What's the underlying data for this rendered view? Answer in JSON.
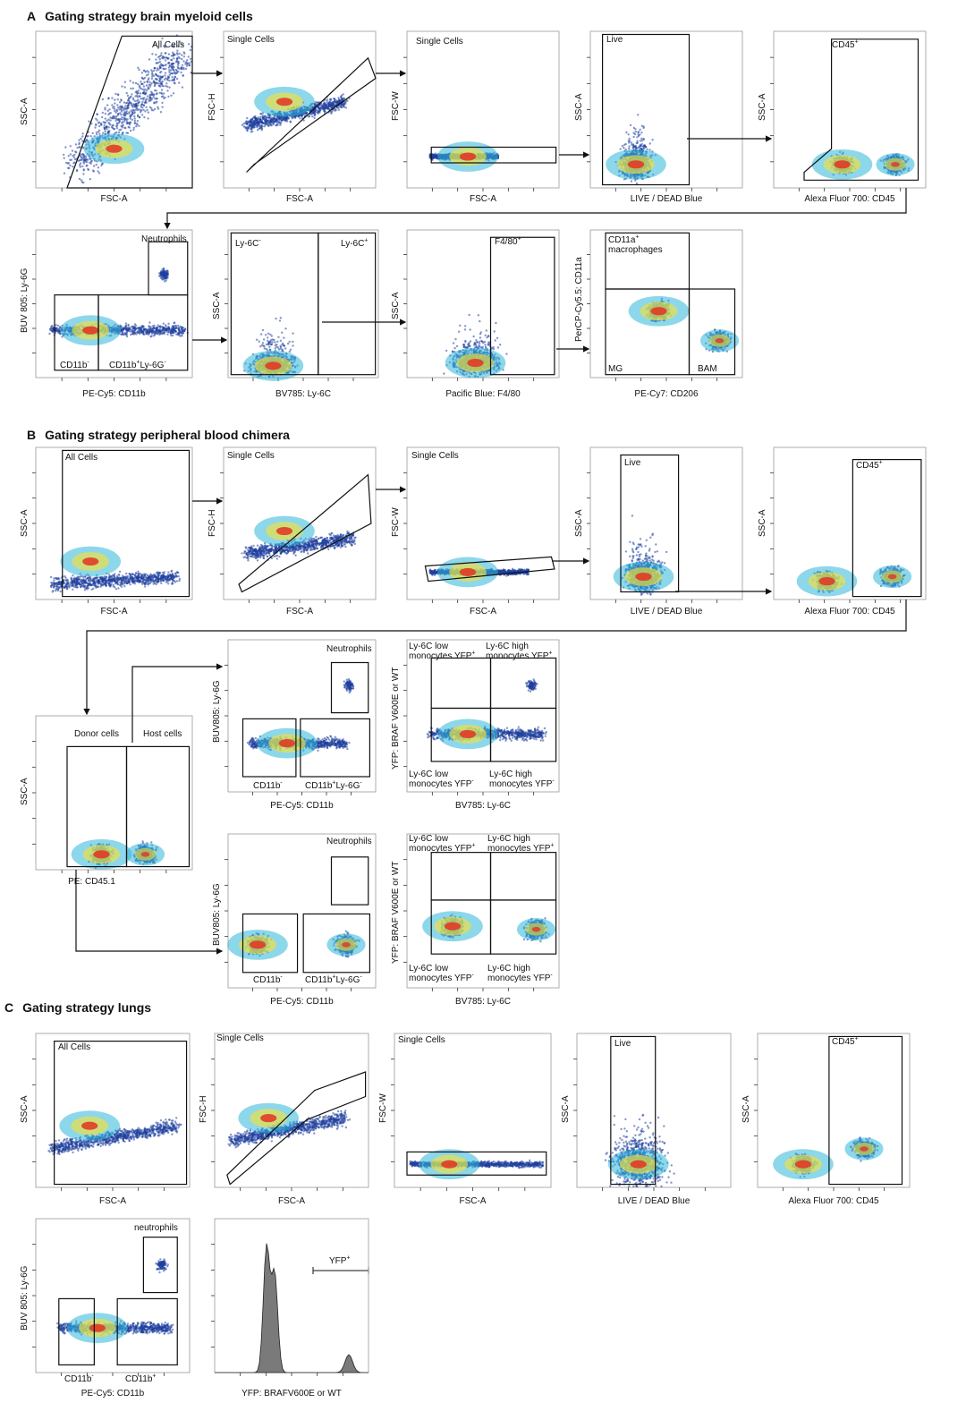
{
  "sections": {
    "a": {
      "letter": "A",
      "title": "Gating strategy brain myeloid cells"
    },
    "b": {
      "letter": "B",
      "title": "Gating strategy peripheral blood chimera"
    },
    "c": {
      "letter": "C",
      "title": "Gating strategy lungs"
    }
  },
  "axes": {
    "fsc_a": "FSC-A",
    "fsc_h": "FSC-H",
    "fsc_w": "FSC-W",
    "ssc_a": "SSC-A",
    "live_dead": "LIVE / DEAD Blue",
    "cd45": "Alexa Fluor 700: CD45",
    "buv805_ly6g": "BUV 805: Ly-6G",
    "buv805_ly6g_b": "BUV805: Ly-6G",
    "pecy5_cd11b": "PE-Cy5: CD11b",
    "bv785_ly6c": "BV785: Ly-6C",
    "pacific_f480": "Pacific Blue: F4/80",
    "percp_cd11a": "PerCP-Cy5.5: CD11a",
    "pecy7_cd206": "PE-Cy7: CD206",
    "pe_cd451": "PE: CD45.1",
    "yfp_braf": "YFP: BRAF V600E or WT",
    "yfp_braf_hist": "YFP: BRAFV600E or WT"
  },
  "gates": {
    "all_cells": "All Cells",
    "single_cells": "Single Cells",
    "live": "Live",
    "cd45": "CD45",
    "neutrophils": "Neutrophils",
    "neutrophils_lc": "neutrophils",
    "cd11b": "CD11b",
    "cd11b_ly6g": "CD11b",
    "ly6c_neg": "Ly-6C",
    "ly6c_pos": "Ly-6C",
    "f480": "F4/80",
    "cd11a_mac_1": "CD11a",
    "cd11a_mac_2": "macrophages",
    "mg": "MG",
    "bam": "BAM",
    "donor": "Donor cells",
    "host": "Host cells",
    "ly6c_low_1": "Ly-6C low",
    "ly6c_high_1": "Ly-6C high",
    "mono_yfp_pos": "monocytes YFP",
    "mono_yfp_neg": "monocytes YFP",
    "yfp_pos": "YFP",
    "ly6g_mid": "Ly-6G",
    "plus": "+",
    "minus": "-"
  },
  "colors": {
    "low": "#1f3f9e",
    "mid": "#2fb6d8",
    "high": "#f2e13c",
    "peak": "#e33221",
    "hist": "#7a7a7a"
  }
}
